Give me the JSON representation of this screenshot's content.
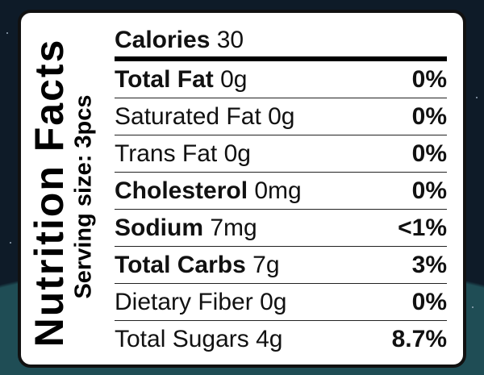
{
  "header": {
    "title": "Nutrition Facts",
    "serving": "Serving size: 3pcs"
  },
  "calories": {
    "label": "Calories",
    "value": "30"
  },
  "rows": [
    {
      "name": "Total Fat",
      "amount": "0g",
      "dv": "0%"
    },
    {
      "name": "Saturated Fat",
      "amount": "0g",
      "dv": "0%"
    },
    {
      "name": "Trans Fat",
      "amount": "0g",
      "dv": "0%"
    },
    {
      "name": "Cholesterol",
      "amount": "0mg",
      "dv": "0%"
    },
    {
      "name": "Sodium",
      "amount": "7mg",
      "dv": "<1%"
    },
    {
      "name": "Total Carbs",
      "amount": "7g",
      "dv": "3%"
    },
    {
      "name": "Dietary Fiber",
      "amount": "0g",
      "dv": "0%"
    },
    {
      "name": "Total Sugars",
      "amount": "4g",
      "dv": "8.7%"
    }
  ]
}
